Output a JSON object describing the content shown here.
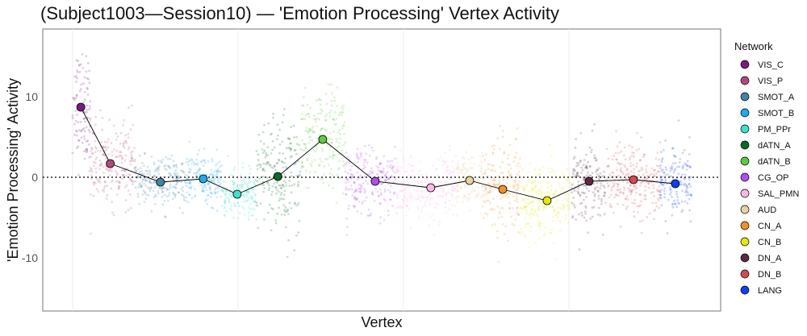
{
  "chart_data": {
    "type": "scatter",
    "title": "(Subject1003—Session10) — 'Emotion Processing' Vertex Activity",
    "xlabel": "Vertex",
    "ylabel": "'Emotion Processing' Activity",
    "xlim": [
      -180,
      3917
    ],
    "ylim": [
      -16.6,
      18.4
    ],
    "yticks": [
      10,
      0,
      -10
    ],
    "ytick_labels": [
      "10",
      "0",
      "-10"
    ],
    "x_gridlines": [
      0,
      1000,
      2000,
      3000
    ],
    "reference_line_y": 0,
    "legend": {
      "title": "Network",
      "placement": "right"
    },
    "series": [
      {
        "name": "VIS_C",
        "color": "#781c81",
        "start": 0,
        "end": 107,
        "mean": 8.7,
        "sd": 3.5
      },
      {
        "name": "VIS_P",
        "color": "#b04a7d",
        "start": 107,
        "end": 380,
        "mean": 1.7,
        "sd": 2.5
      },
      {
        "name": "SMOT_A",
        "color": "#4682a4",
        "start": 380,
        "end": 683,
        "mean": -0.6,
        "sd": 1.5
      },
      {
        "name": "SMOT_B",
        "color": "#1eaaeb",
        "start": 683,
        "end": 902,
        "mean": -0.2,
        "sd": 1.5
      },
      {
        "name": "PM_PPr",
        "color": "#3ee0c9",
        "start": 902,
        "end": 1112,
        "mean": -2.1,
        "sd": 1.5
      },
      {
        "name": "dATN_A",
        "color": "#0a6a2a",
        "start": 1112,
        "end": 1376,
        "mean": 0.1,
        "sd": 3.5
      },
      {
        "name": "dATN_B",
        "color": "#5ccd3a",
        "start": 1376,
        "end": 1649,
        "mean": 4.7,
        "sd": 3.0
      },
      {
        "name": "CG_OP",
        "color": "#b04ef0",
        "start": 1649,
        "end": 1951,
        "mean": -0.5,
        "sd": 2.0
      },
      {
        "name": "SAL_PMN",
        "color": "#ffb8e6",
        "start": 1951,
        "end": 2317,
        "mean": -1.3,
        "sd": 2.0
      },
      {
        "name": "AUD",
        "color": "#e8d3a0",
        "start": 2317,
        "end": 2478,
        "mean": -0.4,
        "sd": 1.8
      },
      {
        "name": "CN_A",
        "color": "#f29226",
        "start": 2478,
        "end": 2707,
        "mean": -1.5,
        "sd": 3.0
      },
      {
        "name": "CN_B",
        "color": "#e8e60a",
        "start": 2707,
        "end": 3015,
        "mean": -2.9,
        "sd": 2.2
      },
      {
        "name": "DN_A",
        "color": "#5c2a42",
        "start": 3015,
        "end": 3220,
        "mean": -0.5,
        "sd": 2.5
      },
      {
        "name": "DN_B",
        "color": "#d44a50",
        "start": 3220,
        "end": 3551,
        "mean": -0.3,
        "sd": 2.2
      },
      {
        "name": "LANG",
        "color": "#1040f0",
        "start": 3551,
        "end": 3741,
        "mean": -0.8,
        "sd": 2.2
      }
    ],
    "mean_point_x": [
      50,
      228,
      531,
      790,
      995,
      1241,
      1512,
      1829,
      2165,
      2400,
      2600,
      2868,
      3122,
      3390,
      3643
    ]
  }
}
